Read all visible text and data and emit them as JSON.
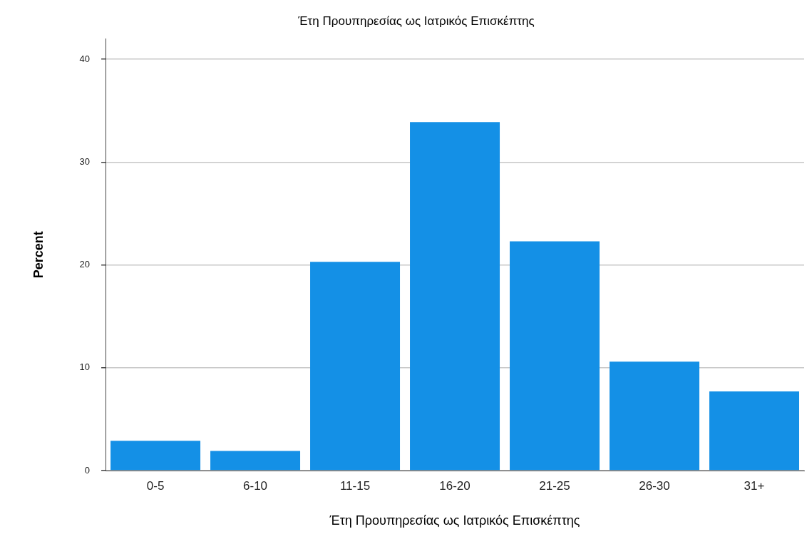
{
  "chart_data": {
    "type": "bar",
    "title": "Έτη Προυπηρεσίας ως Ιατρικός Επισκέπτης",
    "xlabel": "Έτη Προυπηρεσίας ως Ιατρικός Επισκέπτης",
    "ylabel": "Percent",
    "categories": [
      "0-5",
      "6-10",
      "11-15",
      "16-20",
      "21-25",
      "26-30",
      "31+"
    ],
    "values": [
      2.9,
      1.9,
      20.3,
      33.9,
      22.3,
      10.6,
      7.7
    ],
    "color": "#1490e6",
    "ylim": [
      0,
      42
    ],
    "yticks": [
      0,
      10,
      20,
      30,
      40
    ],
    "grid": "y"
  }
}
